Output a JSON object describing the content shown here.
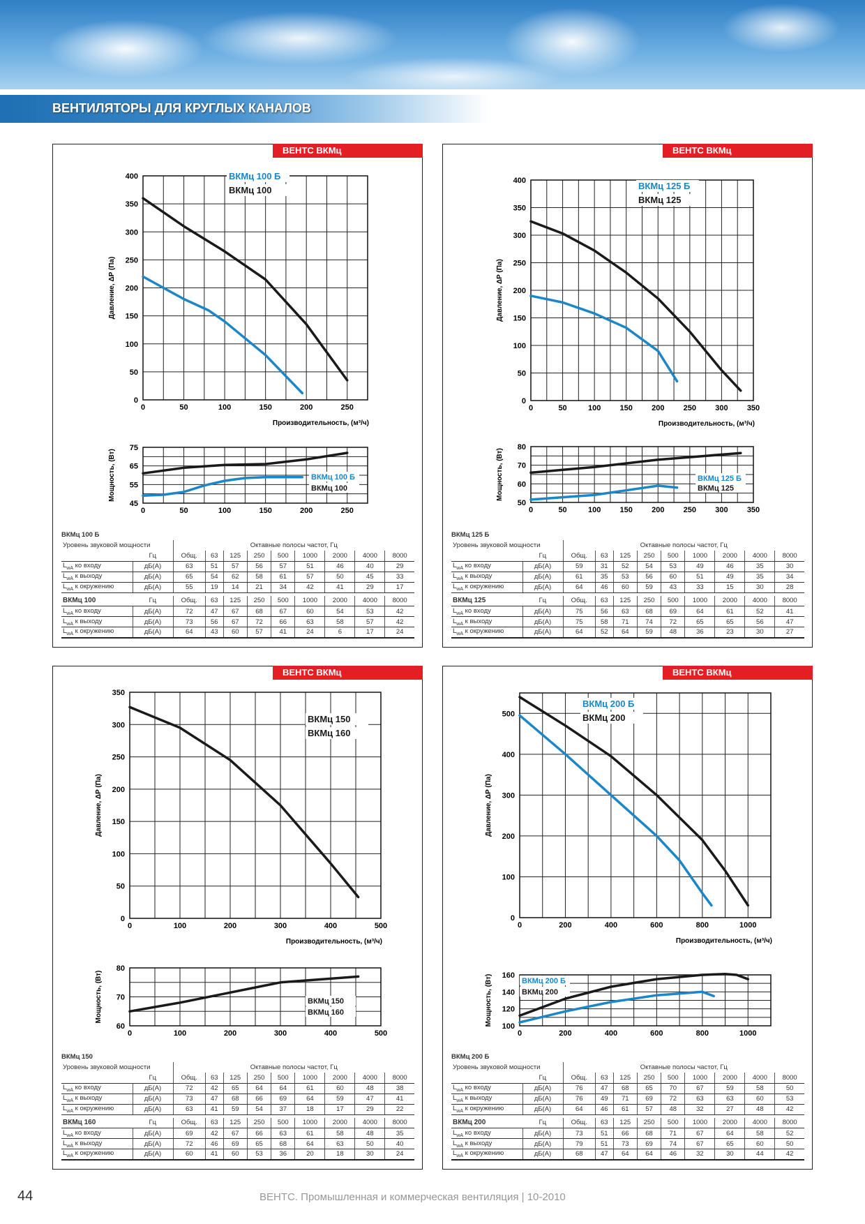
{
  "header": {
    "section_title": "ВЕНТИЛЯТОРЫ ДЛЯ КРУГЛЫХ КАНАЛОВ"
  },
  "footer": {
    "page_number": "44",
    "text": "ВЕНТС. Промышленная и коммерческая вентиляция | 10-2010"
  },
  "labels": {
    "pressure_axis": "Давление, ΔP (Па)",
    "flow_axis": "Производительность, (м³/ч)",
    "power_axis": "Мощность, (Вт)",
    "sound_level": "Уровень звуковой мощности",
    "octave_bands": "Октавные полосы частот, Гц",
    "hz": "Гц",
    "unit": "дБ(А)",
    "total": "Общ.",
    "bands": [
      "63",
      "125",
      "250",
      "500",
      "1000",
      "2000",
      "4000",
      "8000"
    ],
    "row_prefix": "L",
    "row_sub": "wA",
    "rows": [
      "ко входу",
      "к выходу",
      "к окружению"
    ]
  },
  "colors": {
    "blue": "#1b86c8",
    "black": "#1a1a1a",
    "red": "#e31e24"
  },
  "panels": [
    {
      "badge": "ВЕНТС ВКМц",
      "sound": [
        {
          "model": "ВКМц 100 Б",
          "values": [
            [
              63,
              51,
              57,
              56,
              57,
              51,
              46,
              40,
              29
            ],
            [
              65,
              54,
              62,
              58,
              61,
              57,
              50,
              45,
              33
            ],
            [
              55,
              19,
              14,
              21,
              34,
              42,
              41,
              29,
              17
            ]
          ]
        },
        {
          "model": "ВКМц 100",
          "values": [
            [
              72,
              47,
              67,
              68,
              67,
              60,
              54,
              53,
              42
            ],
            [
              73,
              56,
              67,
              72,
              66,
              63,
              58,
              57,
              42
            ],
            [
              64,
              43,
              60,
              57,
              41,
              24,
              6,
              17,
              24
            ]
          ]
        }
      ]
    },
    {
      "badge": "ВЕНТС ВКМц",
      "sound": [
        {
          "model": "ВКМц 125 Б",
          "values": [
            [
              59,
              31,
              52,
              54,
              53,
              49,
              46,
              35,
              30
            ],
            [
              61,
              35,
              53,
              56,
              60,
              51,
              49,
              35,
              34
            ],
            [
              64,
              46,
              60,
              59,
              43,
              33,
              15,
              30,
              28
            ]
          ]
        },
        {
          "model": "ВКМц 125",
          "values": [
            [
              75,
              56,
              63,
              68,
              69,
              64,
              61,
              52,
              41
            ],
            [
              75,
              58,
              71,
              74,
              72,
              65,
              65,
              56,
              47
            ],
            [
              64,
              52,
              64,
              59,
              48,
              36,
              23,
              30,
              27
            ]
          ]
        }
      ]
    },
    {
      "badge": "ВЕНТС ВКМц",
      "sound": [
        {
          "model": "ВКМц 150",
          "values": [
            [
              72,
              42,
              65,
              64,
              64,
              61,
              60,
              48,
              38
            ],
            [
              73,
              47,
              68,
              66,
              69,
              64,
              59,
              47,
              41
            ],
            [
              63,
              41,
              59,
              54,
              37,
              18,
              17,
              29,
              22
            ]
          ]
        },
        {
          "model": "ВКМц 160",
          "values": [
            [
              69,
              42,
              67,
              66,
              63,
              61,
              58,
              48,
              35
            ],
            [
              72,
              46,
              69,
              65,
              68,
              64,
              63,
              50,
              40
            ],
            [
              60,
              41,
              60,
              53,
              36,
              20,
              18,
              30,
              24
            ]
          ]
        }
      ]
    },
    {
      "badge": "ВЕНТС ВКМц",
      "sound": [
        {
          "model": "ВКМц 200 Б",
          "values": [
            [
              76,
              47,
              68,
              65,
              70,
              67,
              59,
              58,
              50
            ],
            [
              76,
              49,
              71,
              69,
              72,
              63,
              63,
              60,
              53
            ],
            [
              64,
              46,
              61,
              57,
              48,
              32,
              27,
              48,
              42
            ]
          ]
        },
        {
          "model": "ВКМц 200",
          "values": [
            [
              73,
              51,
              66,
              68,
              71,
              67,
              64,
              58,
              52
            ],
            [
              79,
              51,
              73,
              69,
              74,
              67,
              65,
              60,
              50
            ],
            [
              68,
              47,
              64,
              64,
              46,
              32,
              30,
              44,
              42
            ]
          ]
        }
      ]
    }
  ],
  "chart_data": [
    {
      "type": "line",
      "title": "ВКМц 100 Б / ВКМц 100 — pressure",
      "xlabel": "Производительность, (м³/ч)",
      "ylabel": "Давление, ΔP (Па)",
      "xlim": [
        0,
        275
      ],
      "ylim": [
        0,
        400
      ],
      "xticks": [
        0,
        50,
        100,
        150,
        200,
        250
      ],
      "yticks": [
        0,
        50,
        100,
        150,
        200,
        250,
        300,
        350,
        400
      ],
      "legend": [
        "ВКМц 100 Б",
        "ВКМц 100"
      ],
      "series": [
        {
          "name": "ВКМц 100 Б",
          "color": "blue",
          "points": [
            [
              0,
              220
            ],
            [
              50,
              180
            ],
            [
              80,
              160
            ],
            [
              100,
              140
            ],
            [
              150,
              80
            ],
            [
              195,
              12
            ]
          ]
        },
        {
          "name": "ВКМц 100",
          "color": "black",
          "points": [
            [
              0,
              360
            ],
            [
              50,
              310
            ],
            [
              100,
              265
            ],
            [
              150,
              215
            ],
            [
              200,
              135
            ],
            [
              250,
              35
            ]
          ]
        }
      ]
    },
    {
      "type": "line",
      "title": "ВКМц 100 Б / ВКМц 100 — power",
      "ylabel": "Мощность, (Вт)",
      "xlim": [
        0,
        275
      ],
      "ylim": [
        45,
        75
      ],
      "xticks": [
        0,
        50,
        100,
        150,
        200,
        250
      ],
      "yticks": [
        45,
        55,
        65,
        75
      ],
      "legend": [
        "ВКМц 100 Б",
        "ВКМц 100"
      ],
      "series": [
        {
          "name": "ВКМц 100 Б",
          "color": "blue",
          "points": [
            [
              0,
              49
            ],
            [
              25,
              49.5
            ],
            [
              50,
              51
            ],
            [
              75,
              54.5
            ],
            [
              100,
              57
            ],
            [
              125,
              58.5
            ],
            [
              150,
              59
            ],
            [
              195,
              59
            ]
          ]
        },
        {
          "name": "ВКМц 100",
          "color": "black",
          "points": [
            [
              0,
              61
            ],
            [
              50,
              64
            ],
            [
              100,
              65.5
            ],
            [
              150,
              66
            ],
            [
              200,
              68.5
            ],
            [
              250,
              72
            ]
          ]
        }
      ]
    },
    {
      "type": "line",
      "title": "ВКМц 125 Б / ВКМц 125 — pressure",
      "xlabel": "Производительность, (м³/ч)",
      "ylabel": "Давление, ΔP (Па)",
      "xlim": [
        0,
        350
      ],
      "ylim": [
        0,
        400
      ],
      "xticks": [
        0,
        50,
        100,
        150,
        200,
        250,
        300,
        350
      ],
      "yticks": [
        0,
        50,
        100,
        150,
        200,
        250,
        300,
        350,
        400
      ],
      "legend": [
        "ВКМц 125 Б",
        "ВКМц 125"
      ],
      "series": [
        {
          "name": "ВКМц 125 Б",
          "color": "blue",
          "points": [
            [
              0,
              190
            ],
            [
              50,
              178
            ],
            [
              100,
              158
            ],
            [
              150,
              132
            ],
            [
              200,
              90
            ],
            [
              230,
              35
            ]
          ]
        },
        {
          "name": "ВКМц 125",
          "color": "black",
          "points": [
            [
              0,
              325
            ],
            [
              50,
              303
            ],
            [
              100,
              272
            ],
            [
              150,
              232
            ],
            [
              200,
              185
            ],
            [
              250,
              125
            ],
            [
              300,
              55
            ],
            [
              330,
              18
            ]
          ]
        }
      ]
    },
    {
      "type": "line",
      "title": "ВКМц 125 Б / ВКМц 125 — power",
      "ylabel": "Мощность, (Вт)",
      "xlim": [
        0,
        350
      ],
      "ylim": [
        50,
        80
      ],
      "xticks": [
        0,
        50,
        100,
        150,
        200,
        250,
        300,
        350
      ],
      "yticks": [
        50,
        60,
        70,
        80
      ],
      "legend": [
        "ВКМц 125 Б",
        "ВКМц 125"
      ],
      "series": [
        {
          "name": "ВКМц 125 Б",
          "color": "blue",
          "points": [
            [
              0,
              51.5
            ],
            [
              100,
              54
            ],
            [
              150,
              56.5
            ],
            [
              200,
              59
            ],
            [
              230,
              58
            ]
          ]
        },
        {
          "name": "ВКМц 125",
          "color": "black",
          "points": [
            [
              0,
              66
            ],
            [
              100,
              69
            ],
            [
              200,
              73
            ],
            [
              330,
              76.5
            ]
          ]
        }
      ]
    },
    {
      "type": "line",
      "title": "ВКМц 150 / ВКМц 160 — pressure",
      "xlabel": "Производительность, (м³/ч)",
      "ylabel": "Давление, ΔP (Па)",
      "xlim": [
        0,
        500
      ],
      "ylim": [
        0,
        350
      ],
      "xticks": [
        0,
        100,
        200,
        300,
        400,
        500
      ],
      "yticks": [
        0,
        50,
        100,
        150,
        200,
        250,
        300,
        350
      ],
      "legend": [
        "ВКМц 150",
        "ВКМц 160"
      ],
      "series": [
        {
          "name": "ВКМц 150 / 160",
          "color": "black",
          "points": [
            [
              0,
              327
            ],
            [
              100,
              295
            ],
            [
              200,
              245
            ],
            [
              300,
              175
            ],
            [
              400,
              85
            ],
            [
              455,
              33
            ]
          ]
        }
      ]
    },
    {
      "type": "line",
      "title": "ВКМц 150 / ВКМц 160 — power",
      "ylabel": "Мощность, (Вт)",
      "xlim": [
        0,
        500
      ],
      "ylim": [
        60,
        80
      ],
      "xticks": [
        0,
        100,
        200,
        300,
        400,
        500
      ],
      "yticks": [
        60,
        70,
        80
      ],
      "legend": [
        "ВКМц 150",
        "ВКМц 160"
      ],
      "series": [
        {
          "name": "ВКМц 150 / 160",
          "color": "black",
          "points": [
            [
              0,
              65
            ],
            [
              100,
              68
            ],
            [
              200,
              71.5
            ],
            [
              300,
              75
            ],
            [
              400,
              76.3
            ],
            [
              455,
              77
            ]
          ]
        }
      ]
    },
    {
      "type": "line",
      "title": "ВКМц 200 Б / ВКМц 200 — pressure",
      "xlabel": "Производительность, (м³/ч)",
      "ylabel": "Давление, ΔP (Па)",
      "xlim": [
        0,
        1100
      ],
      "ylim": [
        0,
        550
      ],
      "xticks": [
        0,
        200,
        400,
        600,
        800,
        1000
      ],
      "yticks": [
        0,
        100,
        200,
        300,
        400,
        500
      ],
      "legend": [
        "ВКМц 200 Б",
        "ВКМц 200"
      ],
      "series": [
        {
          "name": "ВКМц 200 Б",
          "color": "blue",
          "points": [
            [
              0,
              495
            ],
            [
              200,
              400
            ],
            [
              400,
              300
            ],
            [
              600,
              200
            ],
            [
              700,
              140
            ],
            [
              800,
              60
            ],
            [
              840,
              30
            ]
          ]
        },
        {
          "name": "ВКМц 200",
          "color": "black",
          "points": [
            [
              0,
              540
            ],
            [
              200,
              470
            ],
            [
              400,
              395
            ],
            [
              600,
              300
            ],
            [
              800,
              190
            ],
            [
              900,
              115
            ],
            [
              1000,
              30
            ]
          ]
        }
      ]
    },
    {
      "type": "line",
      "title": "ВКМц 200 Б / ВКМц 200 — power",
      "ylabel": "Мощность, (Вт)",
      "xlim": [
        0,
        1100
      ],
      "ylim": [
        100,
        160
      ],
      "xticks": [
        0,
        200,
        400,
        600,
        800,
        1000
      ],
      "yticks": [
        100,
        120,
        140,
        160
      ],
      "legend": [
        "ВКМц 200 Б",
        "ВКМц 200"
      ],
      "series": [
        {
          "name": "ВКМц 200 Б",
          "color": "blue",
          "points": [
            [
              0,
              104
            ],
            [
              200,
              117
            ],
            [
              400,
              128
            ],
            [
              600,
              136
            ],
            [
              800,
              140
            ],
            [
              850,
              135
            ]
          ]
        },
        {
          "name": "ВКМц 200",
          "color": "black",
          "points": [
            [
              0,
              112
            ],
            [
              200,
              132
            ],
            [
              400,
              146
            ],
            [
              600,
              155
            ],
            [
              800,
              160
            ],
            [
              900,
              161
            ],
            [
              950,
              160
            ],
            [
              1000,
              155
            ]
          ]
        }
      ]
    }
  ]
}
